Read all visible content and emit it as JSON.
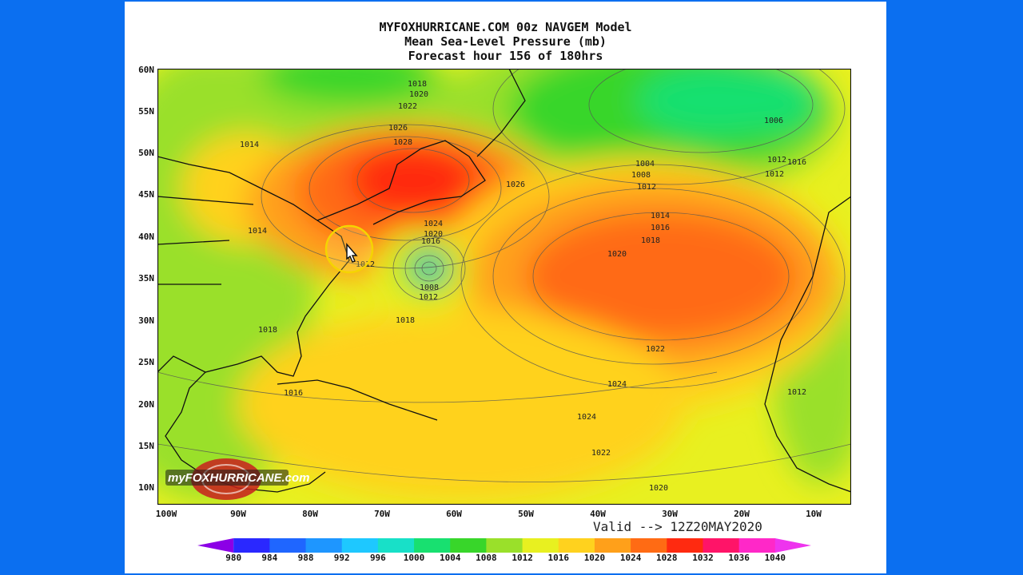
{
  "title": {
    "line1": "MYFOXHURRICANE.COM 00z NAVGEM Model",
    "line2": "Mean Sea-Level Pressure (mb)",
    "line3": "Forecast hour 156 of 180hrs"
  },
  "valid_text": "Valid --> 12Z20MAY2020",
  "lat_labels": [
    "60N",
    "55N",
    "50N",
    "45N",
    "40N",
    "35N",
    "30N",
    "25N",
    "20N",
    "15N",
    "10N"
  ],
  "lon_labels": [
    "100W",
    "90W",
    "80W",
    "70W",
    "60W",
    "50W",
    "40W",
    "30W",
    "20W",
    "10W"
  ],
  "colorbar": {
    "labels": [
      "980",
      "984",
      "988",
      "992",
      "996",
      "1000",
      "1004",
      "1008",
      "1012",
      "1016",
      "1020",
      "1024",
      "1028",
      "1032",
      "1036",
      "1040"
    ],
    "colors": [
      "#8c00e6",
      "#2a28ff",
      "#1f66ff",
      "#1e96ff",
      "#1ec8ff",
      "#18e0c8",
      "#18e070",
      "#38d62a",
      "#9ae02a",
      "#e8f020",
      "#ffd21e",
      "#ffa01a",
      "#ff6b14",
      "#ff2a10",
      "#ff1468",
      "#ff28c8",
      "#ee34ee"
    ]
  },
  "contour_labels": [
    {
      "text": "1018"
    },
    {
      "text": "1020"
    },
    {
      "text": "1022"
    },
    {
      "text": "1026"
    },
    {
      "text": "1028"
    },
    {
      "text": "1014"
    },
    {
      "text": "1014"
    },
    {
      "text": "1026"
    },
    {
      "text": "1024"
    },
    {
      "text": "1020"
    },
    {
      "text": "1016"
    },
    {
      "text": "1012"
    },
    {
      "text": "1008"
    },
    {
      "text": "1012"
    },
    {
      "text": "1018"
    },
    {
      "text": "1012"
    },
    {
      "text": "1012"
    },
    {
      "text": "1006"
    },
    {
      "text": "1004"
    },
    {
      "text": "1008"
    },
    {
      "text": "1012"
    },
    {
      "text": "1014"
    },
    {
      "text": "1016"
    },
    {
      "text": "1018"
    },
    {
      "text": "1020"
    },
    {
      "text": "1022"
    },
    {
      "text": "1024"
    },
    {
      "text": "1024"
    },
    {
      "text": "1022"
    },
    {
      "text": "1020"
    },
    {
      "text": "1018"
    },
    {
      "text": "1016"
    },
    {
      "text": "1012"
    },
    {
      "text": "1016"
    }
  ],
  "logo": {
    "text": "myFOXHURRICANE.com"
  },
  "colors": {
    "background": "#0b6ff0",
    "panel": "#ffffff"
  },
  "icons": {
    "cursor": "pointer-hand-icon"
  }
}
